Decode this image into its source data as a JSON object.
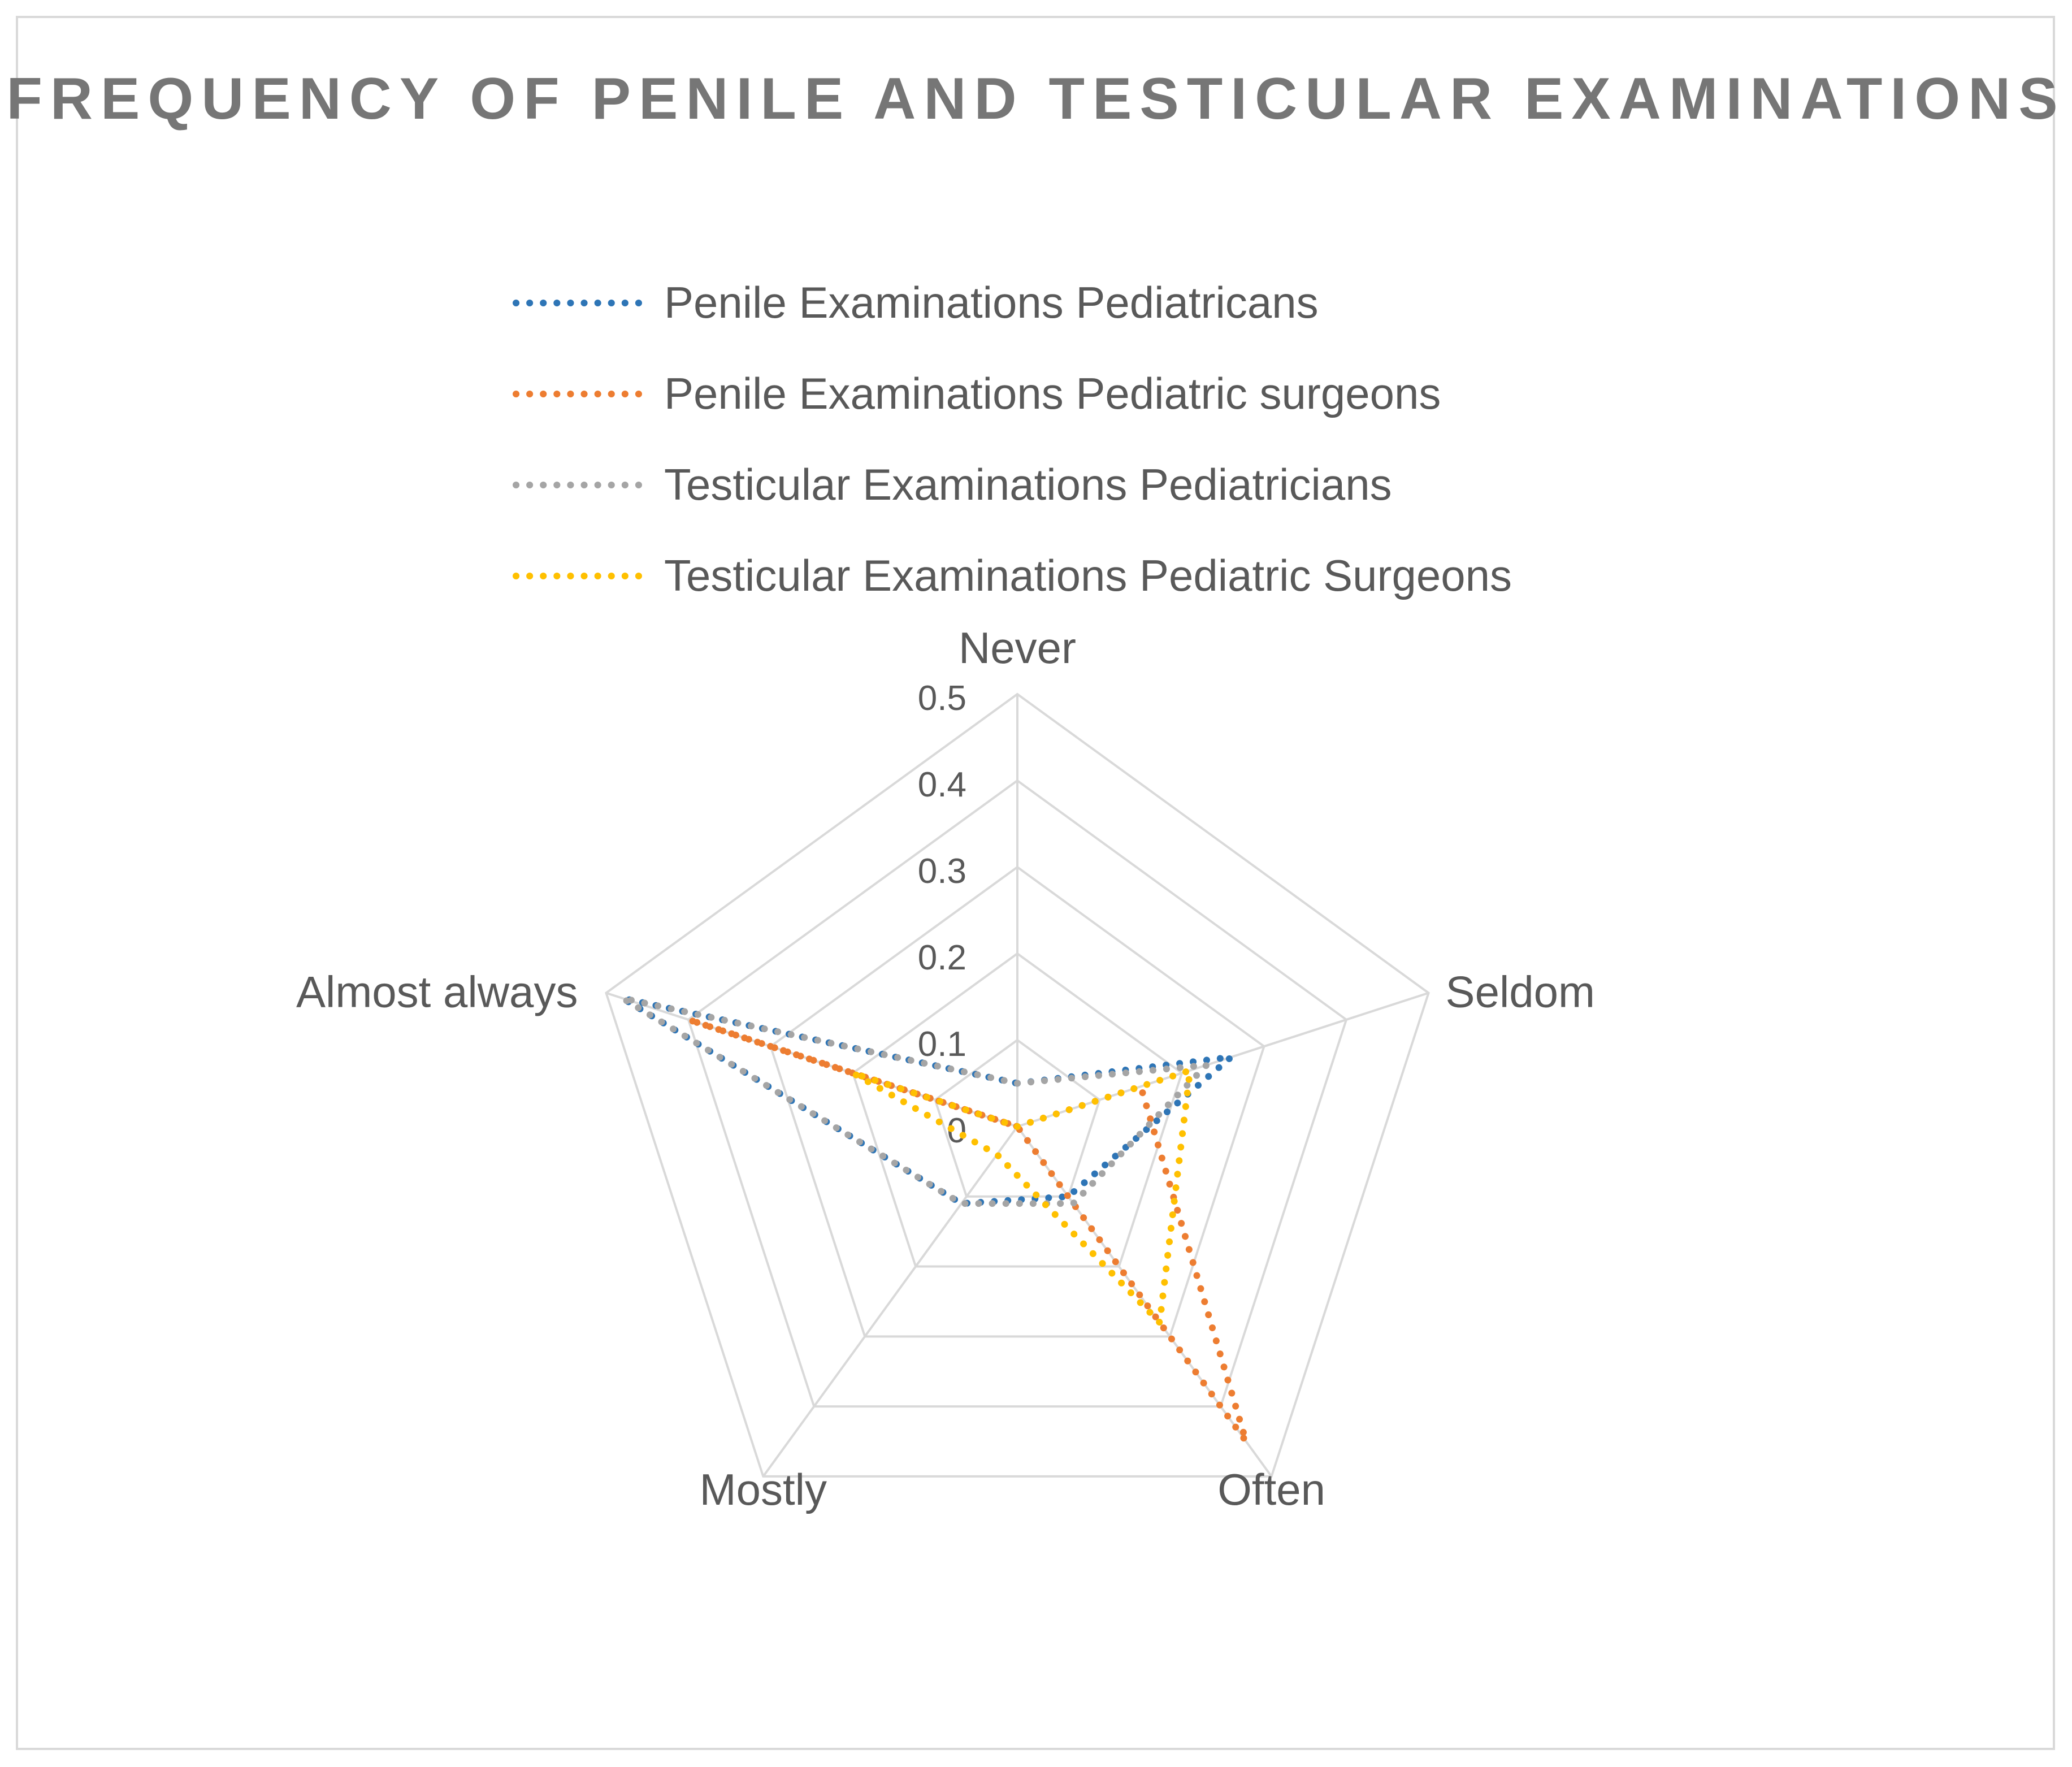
{
  "chart_data": {
    "type": "radar",
    "title": "FREQUENCY OF PENILE AND TESTICULAR EXAMINATIONS",
    "categories": [
      "Never",
      "Seldom",
      "Often",
      "Mostly",
      "Almost always"
    ],
    "radial_ticks": [
      "0",
      "0.1",
      "0.2",
      "0.3",
      "0.4",
      "0.5"
    ],
    "rmin": 0,
    "rmax": 0.5,
    "grid": true,
    "legend_position": "top",
    "line_style": "dotted",
    "series": [
      {
        "name": "Penile Examinations Pediatricans",
        "color": "#2E75B6",
        "values": [
          0.05,
          0.26,
          0.1,
          0.11,
          0.48
        ]
      },
      {
        "name": "Penile Examinations Pediatric surgeons",
        "color": "#ED7D31",
        "values": [
          0.0,
          0.15,
          0.45,
          0.0,
          0.4
        ]
      },
      {
        "name": "Testicular Examinations Pediatricians",
        "color": "#A5A5A5",
        "values": [
          0.05,
          0.23,
          0.11,
          0.11,
          0.48
        ]
      },
      {
        "name": "Testicular Examinations Pediatric Surgeons",
        "color": "#FFC000",
        "values": [
          0.0,
          0.21,
          0.28,
          0.04,
          0.2
        ]
      }
    ]
  }
}
